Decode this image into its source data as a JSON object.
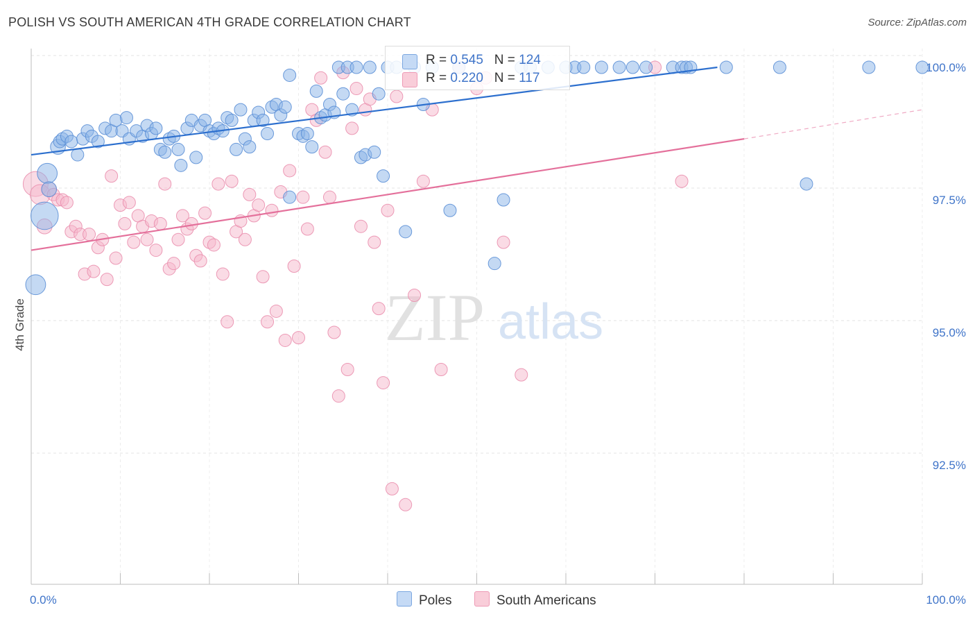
{
  "title": "POLISH VS SOUTH AMERICAN 4TH GRADE CORRELATION CHART",
  "source": "Source: ZipAtlas.com",
  "watermark": {
    "zip": "ZIP",
    "atlas": "atlas"
  },
  "legend": {
    "poles": {
      "r_label": "R = ",
      "r": "0.545",
      "n_label": "N = ",
      "n": "124"
    },
    "south_americans": {
      "r_label": "R = ",
      "r": "0.220",
      "n_label": "N = ",
      "n": "117"
    }
  },
  "chart_data": {
    "type": "scatter",
    "xlabel": "",
    "ylabel": "4th Grade",
    "xlim": [
      0,
      100
    ],
    "ylim": [
      90.3,
      100.6
    ],
    "x_tick_labels": [
      {
        "value": 0,
        "label": "0.0%"
      },
      {
        "value": 100,
        "label": "100.0%"
      }
    ],
    "y_tick_labels": [
      {
        "value": 100.0,
        "label": "100.0%"
      },
      {
        "value": 97.5,
        "label": "97.5%"
      },
      {
        "value": 95.0,
        "label": "95.0%"
      },
      {
        "value": 92.5,
        "label": "92.5%"
      }
    ],
    "grid": true,
    "series": [
      {
        "name": "Poles",
        "color": "#8ab4e8",
        "stroke": "#5b8fd6",
        "line_color": "#2c6fce",
        "trend": {
          "x0": 0,
          "y0": 98.35,
          "x1": 77,
          "y1": 100.0
        },
        "points": [
          [
            1.5,
            97.2,
            22
          ],
          [
            0.5,
            95.9,
            16
          ],
          [
            1.8,
            98.0,
            16
          ],
          [
            2.0,
            97.7,
            12
          ],
          [
            3.0,
            98.5,
            12
          ],
          [
            3.2,
            98.6,
            10
          ],
          [
            3.5,
            98.65,
            10
          ],
          [
            4.0,
            98.7,
            10
          ],
          [
            4.5,
            98.6,
            10
          ],
          [
            5.2,
            98.35,
            10
          ],
          [
            5.8,
            98.65,
            10
          ],
          [
            6.3,
            98.8,
            10
          ],
          [
            6.8,
            98.7,
            10
          ],
          [
            7.5,
            98.6,
            10
          ],
          [
            8.3,
            98.85,
            10
          ],
          [
            9.0,
            98.8,
            10
          ],
          [
            9.5,
            99.0,
            10
          ],
          [
            10.2,
            98.8,
            10
          ],
          [
            10.7,
            99.05,
            10
          ],
          [
            11.0,
            98.65,
            10
          ],
          [
            11.8,
            98.8,
            10
          ],
          [
            12.5,
            98.7,
            10
          ],
          [
            13.0,
            98.9,
            10
          ],
          [
            13.5,
            98.75,
            10
          ],
          [
            14.0,
            98.85,
            10
          ],
          [
            14.5,
            98.45,
            10
          ],
          [
            15.0,
            98.4,
            10
          ],
          [
            15.5,
            98.65,
            10
          ],
          [
            16.0,
            98.7,
            10
          ],
          [
            16.5,
            98.45,
            10
          ],
          [
            16.8,
            98.15,
            10
          ],
          [
            17.5,
            98.85,
            10
          ],
          [
            18.0,
            99.0,
            10
          ],
          [
            18.5,
            98.3,
            10
          ],
          [
            19.0,
            98.9,
            10
          ],
          [
            19.5,
            99.0,
            10
          ],
          [
            20.0,
            98.8,
            10
          ],
          [
            20.5,
            98.75,
            10
          ],
          [
            21.0,
            98.85,
            10
          ],
          [
            21.5,
            98.8,
            10
          ],
          [
            22.0,
            99.05,
            10
          ],
          [
            22.5,
            99.0,
            10
          ],
          [
            23.0,
            98.45,
            10
          ],
          [
            23.5,
            99.2,
            10
          ],
          [
            24.0,
            98.65,
            10
          ],
          [
            24.5,
            98.5,
            10
          ],
          [
            25.0,
            99.0,
            10
          ],
          [
            25.5,
            99.15,
            10
          ],
          [
            26.0,
            99.0,
            10
          ],
          [
            26.5,
            98.75,
            10
          ],
          [
            27.0,
            99.25,
            10
          ],
          [
            27.5,
            99.3,
            10
          ],
          [
            28.0,
            99.1,
            10
          ],
          [
            28.5,
            99.25,
            10
          ],
          [
            29.0,
            99.85,
            10
          ],
          [
            30.0,
            98.75,
            10
          ],
          [
            30.5,
            98.7,
            10
          ],
          [
            31.0,
            98.75,
            10
          ],
          [
            31.5,
            98.5,
            10
          ],
          [
            32.0,
            99.55,
            10
          ],
          [
            32.5,
            99.05,
            10
          ],
          [
            33.0,
            99.1,
            10
          ],
          [
            33.5,
            99.3,
            10
          ],
          [
            34.0,
            99.15,
            10
          ],
          [
            34.5,
            100.0,
            10
          ],
          [
            35.0,
            99.5,
            10
          ],
          [
            35.5,
            100.0,
            10
          ],
          [
            36.0,
            99.2,
            10
          ],
          [
            36.5,
            100.0,
            10
          ],
          [
            37.0,
            98.3,
            10
          ],
          [
            37.5,
            98.35,
            10
          ],
          [
            38.0,
            100.0,
            10
          ],
          [
            38.5,
            98.4,
            10
          ],
          [
            39.0,
            99.5,
            10
          ],
          [
            39.5,
            97.95,
            10
          ],
          [
            40.0,
            100.0,
            10
          ],
          [
            41.0,
            100.0,
            10
          ],
          [
            42.0,
            96.9,
            10
          ],
          [
            43.0,
            100.0,
            10
          ],
          [
            44.0,
            99.3,
            10
          ],
          [
            45.0,
            100.0,
            10
          ],
          [
            47.0,
            97.3,
            10
          ],
          [
            48.0,
            100.0,
            10
          ],
          [
            52.0,
            96.3,
            10
          ],
          [
            53.0,
            97.5,
            10
          ],
          [
            55.0,
            100.0,
            10
          ],
          [
            56.0,
            100.0,
            10
          ],
          [
            58.0,
            100.0,
            10
          ],
          [
            60.0,
            100.0,
            10
          ],
          [
            61.0,
            100.0,
            10
          ],
          [
            62.0,
            100.0,
            10
          ],
          [
            64.0,
            100.0,
            10
          ],
          [
            66.0,
            100.0,
            10
          ],
          [
            67.5,
            100.0,
            10
          ],
          [
            69.0,
            100.0,
            10
          ],
          [
            72.0,
            100.0,
            10
          ],
          [
            73.0,
            100.0,
            10
          ],
          [
            73.5,
            100.0,
            10
          ],
          [
            74.0,
            100.0,
            10
          ],
          [
            78.0,
            100.0,
            10
          ],
          [
            84.0,
            100.0,
            10
          ],
          [
            87.0,
            97.8,
            10
          ],
          [
            94.0,
            100.0,
            10
          ],
          [
            100.0,
            100.0,
            10
          ],
          [
            29.0,
            97.55,
            10
          ]
        ]
      },
      {
        "name": "South Americans",
        "color": "#f5b8cb",
        "stroke": "#ea8fae",
        "line_color": "#e4709b",
        "trend": {
          "x0": 0,
          "y0": 96.55,
          "x1": 80,
          "y1": 98.65
        },
        "trend_dash": {
          "x0": 80,
          "y0": 98.65,
          "x1": 100,
          "y1": 99.2
        },
        "points": [
          [
            0.5,
            97.8,
            20
          ],
          [
            1.0,
            97.6,
            16
          ],
          [
            1.5,
            97.0,
            12
          ],
          [
            2.0,
            97.7,
            12
          ],
          [
            2.5,
            97.6,
            10
          ],
          [
            3.0,
            97.5,
            10
          ],
          [
            3.5,
            97.5,
            10
          ],
          [
            4.0,
            97.45,
            10
          ],
          [
            4.5,
            96.9,
            10
          ],
          [
            5.0,
            97.0,
            10
          ],
          [
            5.5,
            96.85,
            10
          ],
          [
            6.0,
            96.1,
            10
          ],
          [
            6.5,
            96.85,
            10
          ],
          [
            7.0,
            96.15,
            10
          ],
          [
            7.5,
            96.6,
            10
          ],
          [
            8.0,
            96.75,
            10
          ],
          [
            8.5,
            96.0,
            10
          ],
          [
            9.0,
            97.95,
            10
          ],
          [
            9.5,
            96.4,
            10
          ],
          [
            10.0,
            97.4,
            10
          ],
          [
            10.5,
            97.05,
            10
          ],
          [
            11.0,
            97.45,
            10
          ],
          [
            11.5,
            96.7,
            10
          ],
          [
            12.0,
            97.2,
            10
          ],
          [
            12.5,
            97.0,
            10
          ],
          [
            13.0,
            96.75,
            10
          ],
          [
            13.5,
            97.1,
            10
          ],
          [
            14.0,
            96.55,
            10
          ],
          [
            14.5,
            97.05,
            10
          ],
          [
            15.0,
            97.8,
            10
          ],
          [
            15.5,
            96.2,
            10
          ],
          [
            16.0,
            96.3,
            10
          ],
          [
            16.5,
            96.75,
            10
          ],
          [
            17.0,
            97.2,
            10
          ],
          [
            17.5,
            96.95,
            10
          ],
          [
            18.0,
            97.05,
            10
          ],
          [
            18.5,
            96.45,
            10
          ],
          [
            19.0,
            96.35,
            10
          ],
          [
            19.5,
            97.25,
            10
          ],
          [
            20.0,
            96.7,
            10
          ],
          [
            20.5,
            96.65,
            10
          ],
          [
            21.0,
            97.8,
            10
          ],
          [
            21.5,
            96.1,
            10
          ],
          [
            22.0,
            95.2,
            10
          ],
          [
            22.5,
            97.85,
            10
          ],
          [
            23.0,
            96.9,
            10
          ],
          [
            23.5,
            97.1,
            10
          ],
          [
            24.0,
            96.75,
            10
          ],
          [
            24.5,
            97.6,
            10
          ],
          [
            25.0,
            97.2,
            10
          ],
          [
            25.5,
            97.4,
            10
          ],
          [
            26.0,
            96.05,
            10
          ],
          [
            26.5,
            95.2,
            10
          ],
          [
            27.0,
            97.3,
            10
          ],
          [
            27.5,
            95.4,
            10
          ],
          [
            28.0,
            97.65,
            10
          ],
          [
            28.5,
            94.85,
            10
          ],
          [
            29.0,
            98.05,
            10
          ],
          [
            29.5,
            96.25,
            10
          ],
          [
            30.0,
            94.9,
            10
          ],
          [
            30.5,
            97.55,
            10
          ],
          [
            31.0,
            96.95,
            10
          ],
          [
            31.5,
            99.2,
            10
          ],
          [
            32.0,
            99.0,
            10
          ],
          [
            32.5,
            99.8,
            10
          ],
          [
            33.0,
            98.4,
            10
          ],
          [
            33.5,
            97.55,
            10
          ],
          [
            34.0,
            95.0,
            10
          ],
          [
            34.5,
            93.8,
            10
          ],
          [
            35.0,
            99.9,
            10
          ],
          [
            35.5,
            94.3,
            10
          ],
          [
            36.0,
            98.85,
            10
          ],
          [
            36.5,
            99.6,
            10
          ],
          [
            37.0,
            97.0,
            10
          ],
          [
            37.5,
            99.2,
            10
          ],
          [
            38.0,
            99.4,
            10
          ],
          [
            38.5,
            96.7,
            10
          ],
          [
            39.0,
            95.45,
            10
          ],
          [
            39.5,
            94.05,
            10
          ],
          [
            40.0,
            97.3,
            10
          ],
          [
            40.5,
            92.05,
            10
          ],
          [
            41.0,
            99.45,
            10
          ],
          [
            42.0,
            91.75,
            10
          ],
          [
            43.0,
            95.7,
            10
          ],
          [
            44.0,
            97.85,
            10
          ],
          [
            45.0,
            99.2,
            10
          ],
          [
            46.0,
            94.3,
            10
          ],
          [
            48.0,
            100.0,
            10
          ],
          [
            50.0,
            99.6,
            10
          ],
          [
            51.0,
            99.8,
            10
          ],
          [
            53.0,
            96.7,
            10
          ],
          [
            55.0,
            94.2,
            10
          ],
          [
            70.0,
            100.0,
            10
          ],
          [
            73.0,
            97.85,
            10
          ]
        ]
      }
    ]
  }
}
